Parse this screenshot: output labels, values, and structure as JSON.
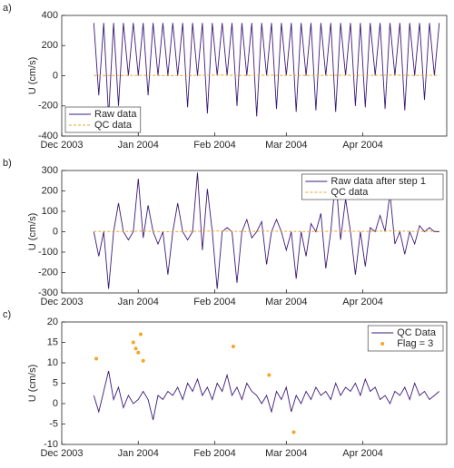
{
  "chart_data": [
    {
      "type": "line",
      "label": "a)",
      "ylabel": "U (cm/s)",
      "legend": "lower left",
      "xlim": [
        0,
        156
      ],
      "xticks": [
        {
          "value": 0,
          "label": "Dec 2003"
        },
        {
          "value": 31,
          "label": "Jan 2004"
        },
        {
          "value": 62,
          "label": "Feb 2004"
        },
        {
          "value": 91,
          "label": "Mar 2004"
        },
        {
          "value": 122,
          "label": "Apr 2004"
        }
      ],
      "ylim": [
        -400,
        400
      ],
      "yticks": [
        -400,
        -200,
        0,
        200,
        400
      ],
      "series": [
        {
          "name": "Raw data",
          "color": "#3d1a78",
          "style": "solid",
          "x": [
            13,
            15,
            17,
            19,
            21,
            23,
            25,
            27,
            29,
            31,
            33,
            35,
            37,
            39,
            41,
            43,
            45,
            47,
            49,
            51,
            53,
            55,
            57,
            59,
            61,
            63,
            65,
            67,
            69,
            71,
            73,
            75,
            77,
            79,
            81,
            83,
            85,
            87,
            89,
            91,
            93,
            95,
            97,
            99,
            101,
            103,
            105,
            107,
            109,
            111,
            113,
            115,
            117,
            119,
            121,
            123,
            125,
            127,
            129,
            131,
            133,
            135,
            137,
            139,
            141,
            143,
            145,
            147,
            149,
            151,
            153
          ],
          "values": [
            350,
            -130,
            350,
            -270,
            350,
            -200,
            350,
            0,
            350,
            0,
            350,
            -130,
            350,
            0,
            350,
            0,
            350,
            0,
            350,
            -210,
            350,
            0,
            350,
            -250,
            350,
            0,
            350,
            0,
            350,
            -200,
            350,
            0,
            350,
            -270,
            350,
            0,
            350,
            -220,
            350,
            0,
            350,
            -240,
            350,
            0,
            350,
            -230,
            350,
            0,
            350,
            -240,
            350,
            0,
            350,
            -200,
            350,
            -210,
            350,
            0,
            350,
            -220,
            350,
            0,
            350,
            -230,
            350,
            0,
            350,
            -160,
            350,
            0,
            350
          ]
        },
        {
          "name": "QC data",
          "color": "#f0a030",
          "style": "dashed",
          "x": [
            13,
            23,
            33,
            43,
            53,
            63,
            73,
            83,
            93,
            103,
            113,
            123,
            133,
            143,
            153
          ],
          "values": [
            2,
            1,
            3,
            0,
            2,
            4,
            1,
            3,
            2,
            1,
            3,
            2,
            4,
            2,
            3
          ]
        }
      ]
    },
    {
      "type": "line",
      "label": "b)",
      "ylabel": "U (cm/s)",
      "legend": "upper right",
      "xlim": [
        0,
        156
      ],
      "xticks": [
        {
          "value": 0,
          "label": "Dec 2003"
        },
        {
          "value": 31,
          "label": "Jan 2004"
        },
        {
          "value": 62,
          "label": "Feb 2004"
        },
        {
          "value": 91,
          "label": "Mar 2004"
        },
        {
          "value": 122,
          "label": "Apr 2004"
        }
      ],
      "ylim": [
        -300,
        300
      ],
      "yticks": [
        -300,
        -200,
        -100,
        0,
        100,
        200,
        300
      ],
      "series": [
        {
          "name": "Raw data after step 1",
          "color": "#3d1a78",
          "style": "solid",
          "x": [
            13,
            15,
            17,
            19,
            21,
            23,
            25,
            27,
            29,
            31,
            33,
            35,
            37,
            39,
            41,
            43,
            45,
            47,
            49,
            51,
            53,
            55,
            57,
            59,
            61,
            63,
            65,
            67,
            69,
            71,
            73,
            75,
            77,
            79,
            81,
            83,
            85,
            87,
            89,
            91,
            93,
            95,
            97,
            99,
            101,
            103,
            105,
            107,
            109,
            111,
            113,
            115,
            117,
            119,
            121,
            123,
            125,
            127,
            129,
            131,
            133,
            135,
            137,
            139,
            141,
            143,
            145,
            147,
            149,
            151,
            153
          ],
          "values": [
            0,
            -120,
            0,
            -280,
            0,
            140,
            0,
            -40,
            0,
            260,
            -30,
            130,
            0,
            -60,
            0,
            -210,
            0,
            140,
            0,
            -40,
            0,
            290,
            -90,
            210,
            0,
            -280,
            0,
            20,
            0,
            -250,
            0,
            60,
            -30,
            0,
            50,
            -160,
            0,
            60,
            0,
            -90,
            0,
            -230,
            0,
            -120,
            40,
            0,
            90,
            -180,
            0,
            270,
            -40,
            160,
            0,
            -210,
            0,
            -170,
            20,
            0,
            80,
            0,
            190,
            -60,
            0,
            -110,
            0,
            -60,
            30,
            0,
            20,
            0,
            0
          ]
        },
        {
          "name": "QC data",
          "color": "#f0a030",
          "style": "dashed",
          "x": [
            13,
            23,
            33,
            43,
            53,
            63,
            73,
            83,
            93,
            103,
            113,
            123,
            133,
            143,
            153
          ],
          "values": [
            2,
            1,
            3,
            0,
            2,
            4,
            1,
            3,
            2,
            1,
            3,
            2,
            4,
            2,
            3
          ]
        }
      ]
    },
    {
      "type": "line",
      "label": "c)",
      "ylabel": "U (cm/s)",
      "legend": "upper right",
      "xlim": [
        0,
        156
      ],
      "xticks": [
        {
          "value": 0,
          "label": "Dec 2003"
        },
        {
          "value": 31,
          "label": "Jan 2004"
        },
        {
          "value": 62,
          "label": "Feb 2004"
        },
        {
          "value": 91,
          "label": "Mar 2004"
        },
        {
          "value": 122,
          "label": "Apr 2004"
        }
      ],
      "ylim": [
        -10,
        20
      ],
      "yticks": [
        -10,
        -5,
        0,
        5,
        10,
        15,
        20
      ],
      "series": [
        {
          "name": "QC Data",
          "color": "#3d1a78",
          "style": "solid",
          "x": [
            13,
            15,
            17,
            19,
            21,
            23,
            25,
            27,
            29,
            31,
            33,
            35,
            37,
            39,
            41,
            43,
            45,
            47,
            49,
            51,
            53,
            55,
            57,
            59,
            61,
            63,
            65,
            67,
            69,
            71,
            73,
            75,
            77,
            79,
            81,
            83,
            85,
            87,
            89,
            91,
            93,
            95,
            97,
            99,
            101,
            103,
            105,
            107,
            109,
            111,
            113,
            115,
            117,
            119,
            121,
            123,
            125,
            127,
            129,
            131,
            133,
            135,
            137,
            139,
            141,
            143,
            145,
            147,
            149,
            151,
            153
          ],
          "values": [
            2,
            -2,
            3,
            8,
            1,
            4,
            -1,
            2,
            0,
            1,
            3,
            1,
            -4,
            2,
            1,
            3,
            2,
            4,
            1,
            5,
            3,
            6,
            2,
            4,
            1,
            5,
            3,
            7,
            2,
            4,
            1,
            5,
            3,
            2,
            0,
            2,
            -2,
            3,
            1,
            4,
            -2,
            2,
            0,
            3,
            1,
            4,
            2,
            3,
            1,
            5,
            2,
            4,
            3,
            5,
            2,
            6,
            3,
            4,
            1,
            2,
            0,
            3,
            2,
            4,
            1,
            5,
            2,
            3,
            1,
            2,
            3
          ]
        },
        {
          "name": "Flag = 3",
          "color": "#f5a623",
          "style": "markers",
          "x": [
            14,
            29,
            30,
            31,
            32,
            33,
            69.5,
            84,
            94
          ],
          "values": [
            11,
            15,
            13.5,
            12.5,
            17,
            10.5,
            14,
            7,
            -7
          ]
        }
      ]
    }
  ]
}
